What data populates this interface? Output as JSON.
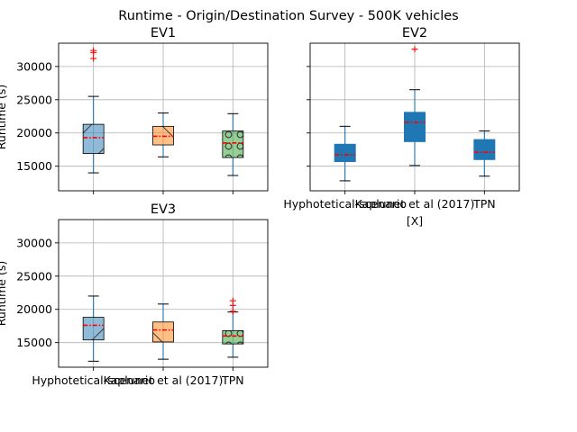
{
  "figure": {
    "title": "Runtime  - Origin/Destination Survey - 500K vehicles"
  },
  "colors": {
    "ev1": [
      "#1f77b4",
      "#ff7f0e",
      "#2ca02c"
    ],
    "ev1_alpha": 0.5,
    "ev2": "#1f77b4",
    "median": "#ff0000",
    "grid": "#b0b0b0",
    "whisker": "#1f77b4"
  },
  "chart_data": [
    {
      "type": "box",
      "title": "EV1",
      "xlabel": "",
      "ylabel": "Runtime (s)",
      "categories": [
        "Hyphotetical-scenario",
        "Kaplunet et al (2017)",
        "TPN"
      ],
      "show_xticklabels": false,
      "ylim": [
        11300,
        33500
      ],
      "yticks": [
        15000,
        20000,
        25000,
        30000
      ],
      "grid": true,
      "hatch": [
        "/",
        "\\",
        "o"
      ],
      "boxes": [
        {
          "whislo": 14000,
          "q1": 16900,
          "med": 19300,
          "q3": 21300,
          "whishi": 25500,
          "fliers": [
            31200,
            32100,
            32400
          ]
        },
        {
          "whislo": 16400,
          "q1": 18200,
          "med": 19500,
          "q3": 21000,
          "whishi": 23000,
          "fliers": []
        },
        {
          "whislo": 13600,
          "q1": 16300,
          "med": 18500,
          "q3": 20300,
          "whishi": 22900,
          "fliers": []
        }
      ]
    },
    {
      "type": "box",
      "title": "EV2",
      "xlabel": "[X]",
      "ylabel": "",
      "categories": [
        "Hyphotetical-scenario",
        "Kaplunet et al (2017)",
        "TPN"
      ],
      "show_xticklabels": true,
      "ylim": [
        11300,
        33500
      ],
      "yticks": [
        15000,
        20000,
        25000,
        30000
      ],
      "grid": true,
      "boxes": [
        {
          "whislo": 12800,
          "q1": 15700,
          "med": 16700,
          "q3": 18300,
          "whishi": 21000,
          "fliers": []
        },
        {
          "whislo": 15100,
          "q1": 18700,
          "med": 21600,
          "q3": 23100,
          "whishi": 26500,
          "fliers": [
            32600
          ]
        },
        {
          "whislo": 13500,
          "q1": 16000,
          "med": 17100,
          "q3": 19000,
          "whishi": 20300,
          "fliers": []
        }
      ]
    },
    {
      "type": "box",
      "title": "EV3",
      "xlabel": "",
      "ylabel": "Runtime (s)",
      "categories": [
        "Hyphotetical-scenario",
        "Kaplunet et al (2017)",
        "TPN"
      ],
      "show_xticklabels": true,
      "ylim": [
        11300,
        33500
      ],
      "yticks": [
        15000,
        20000,
        25000,
        30000
      ],
      "grid": true,
      "hatch": [
        "/",
        "\\",
        "o"
      ],
      "boxes": [
        {
          "whislo": 12200,
          "q1": 15400,
          "med": 17600,
          "q3": 18800,
          "whishi": 22000,
          "fliers": []
        },
        {
          "whislo": 12500,
          "q1": 15100,
          "med": 16900,
          "q3": 18100,
          "whishi": 20800,
          "fliers": []
        },
        {
          "whislo": 12800,
          "q1": 14800,
          "med": 16000,
          "q3": 16800,
          "whishi": 19600,
          "fliers": [
            19700,
            20600,
            21300
          ]
        }
      ]
    }
  ]
}
